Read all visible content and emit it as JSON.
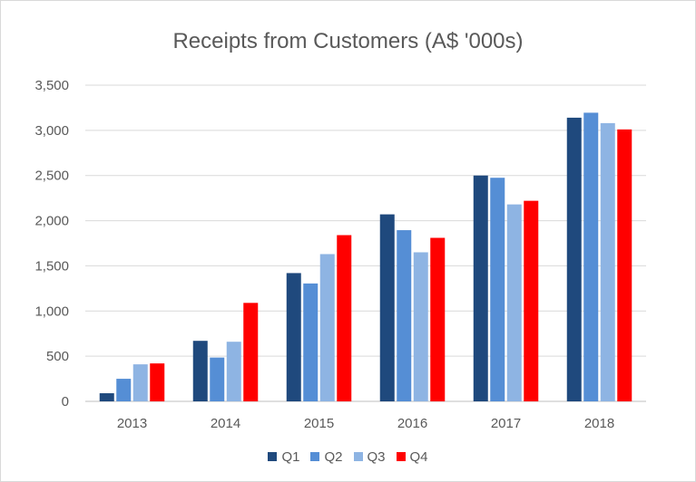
{
  "chart_data": {
    "type": "bar",
    "title": "Receipts from Customers (A$ '000s)",
    "categories": [
      "2013",
      "2014",
      "2015",
      "2016",
      "2017",
      "2018"
    ],
    "series": [
      {
        "name": "Q1",
        "color": "#1f497d",
        "values": [
          90,
          670,
          1420,
          2070,
          2500,
          3140
        ]
      },
      {
        "name": "Q2",
        "color": "#558ed5",
        "values": [
          250,
          485,
          1305,
          1895,
          2475,
          3195
        ]
      },
      {
        "name": "Q3",
        "color": "#8eb4e3",
        "values": [
          410,
          660,
          1630,
          1650,
          2180,
          3080
        ]
      },
      {
        "name": "Q4",
        "color": "#ff0000",
        "values": [
          420,
          1090,
          1840,
          1810,
          2220,
          3010
        ]
      }
    ],
    "yticks": [
      "0",
      "500",
      "1,000",
      "1,500",
      "2,000",
      "2,500",
      "3,000",
      "3,500"
    ],
    "ylim": [
      0,
      3500
    ],
    "grid": true,
    "legend_position": "bottom"
  }
}
